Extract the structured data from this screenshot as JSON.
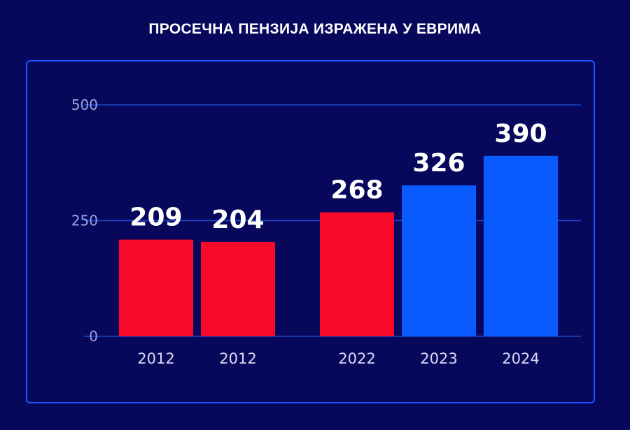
{
  "chart_data": {
    "type": "bar",
    "title": "ПРОСЕЧНА ПЕНЗИЈА ИЗРАЖЕНА У ЕВРИМА",
    "xlabel": "",
    "ylabel": "",
    "categories": [
      "2012",
      "2012",
      "2022",
      "2023",
      "2024"
    ],
    "values": [
      209,
      204,
      268,
      326,
      390
    ],
    "value_labels": [
      "209",
      "204",
      "268",
      "326",
      "390"
    ],
    "ylim": [
      0,
      500
    ],
    "yticks": [
      0,
      250,
      500
    ],
    "ytick_labels": [
      "0",
      "250",
      "500"
    ],
    "grid": true,
    "legend": "none",
    "colors": [
      "#f70a2a",
      "#f70a2a",
      "#f70a2a",
      "#0a5bff",
      "#0a5bff"
    ]
  },
  "colors": {
    "background": "#07075c",
    "panel_border": "#1e55ff",
    "grid": "#1c47c8"
  }
}
